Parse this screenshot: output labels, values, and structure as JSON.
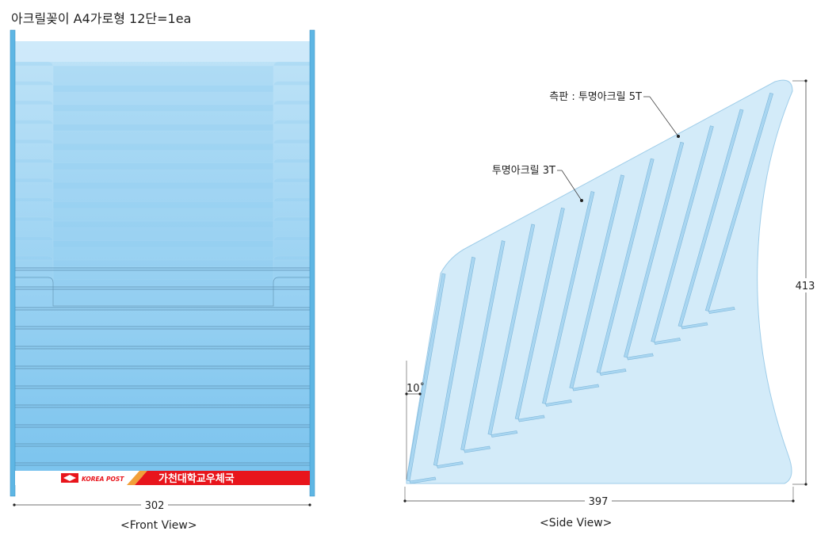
{
  "title": "아크릴꽂이 A4가로형 12단=1ea",
  "front_view": {
    "caption": "<Front View>",
    "width_dim": "302",
    "shelf_count": 12,
    "banner": {
      "brand": "KOREA POST",
      "office": "가천대학교우체국",
      "color": "#e8151c"
    }
  },
  "side_view": {
    "caption": "<Side View>",
    "width_dim": "397",
    "height_dim": "413",
    "angle_label": "10˚",
    "callout_side_panel": "측판 : 투명아크릴 5T",
    "callout_shelf": "투명아크릴 3T",
    "shelf_count": 12
  },
  "colors": {
    "acrylic_blue": "#81c7ef",
    "side_panel": "#d3ebf9",
    "post_bar": "#5eb6e4"
  }
}
